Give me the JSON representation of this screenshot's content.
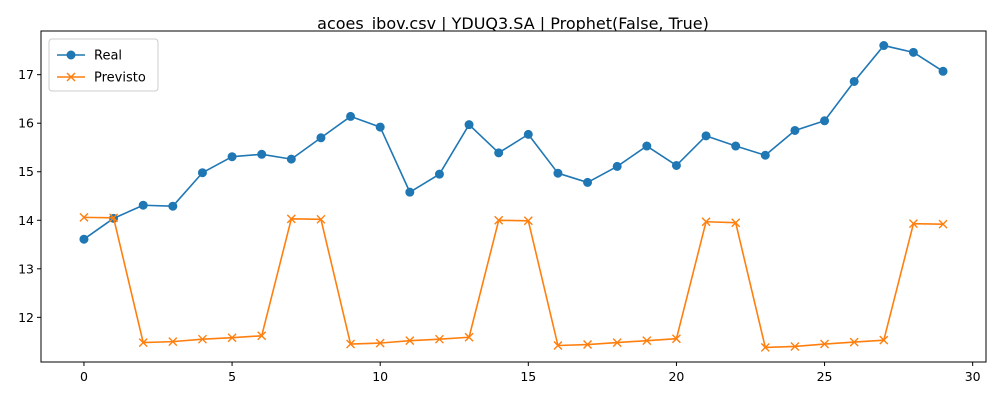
{
  "chart_data": {
    "type": "line",
    "title": "acoes_ibov.csv | YDUQ3.SA | Prophet(False, True)",
    "xlabel": "",
    "ylabel": "",
    "xlim": [
      -1.45,
      30.45
    ],
    "ylim": [
      11.08,
      17.9
    ],
    "xticks": [
      0,
      5,
      10,
      15,
      20,
      25,
      30
    ],
    "yticks": [
      12,
      13,
      14,
      15,
      16,
      17
    ],
    "grid": false,
    "legend_position": "upper-left",
    "x": [
      0,
      1,
      2,
      3,
      4,
      5,
      6,
      7,
      8,
      9,
      10,
      11,
      12,
      13,
      14,
      15,
      16,
      17,
      18,
      19,
      20,
      21,
      22,
      23,
      24,
      25,
      26,
      27,
      28,
      29
    ],
    "series": [
      {
        "name": "Real",
        "color": "#1f77b4",
        "marker": "circle",
        "values": [
          13.61,
          14.04,
          14.31,
          14.29,
          14.98,
          15.31,
          15.36,
          15.26,
          15.7,
          16.14,
          15.92,
          14.58,
          14.95,
          15.97,
          15.39,
          15.77,
          14.97,
          14.78,
          15.11,
          15.53,
          15.13,
          15.74,
          15.53,
          15.34,
          15.85,
          16.05,
          16.86,
          17.6,
          17.46,
          17.07
        ]
      },
      {
        "name": "Previsto",
        "color": "#ff7f0e",
        "marker": "x",
        "values": [
          14.06,
          14.05,
          11.48,
          11.5,
          11.55,
          11.58,
          11.62,
          14.03,
          14.02,
          11.45,
          11.47,
          11.52,
          11.55,
          11.59,
          14.0,
          13.99,
          11.42,
          11.44,
          11.48,
          11.52,
          11.56,
          13.97,
          13.95,
          11.38,
          11.4,
          11.45,
          11.49,
          11.53,
          13.93,
          13.92
        ]
      }
    ]
  }
}
